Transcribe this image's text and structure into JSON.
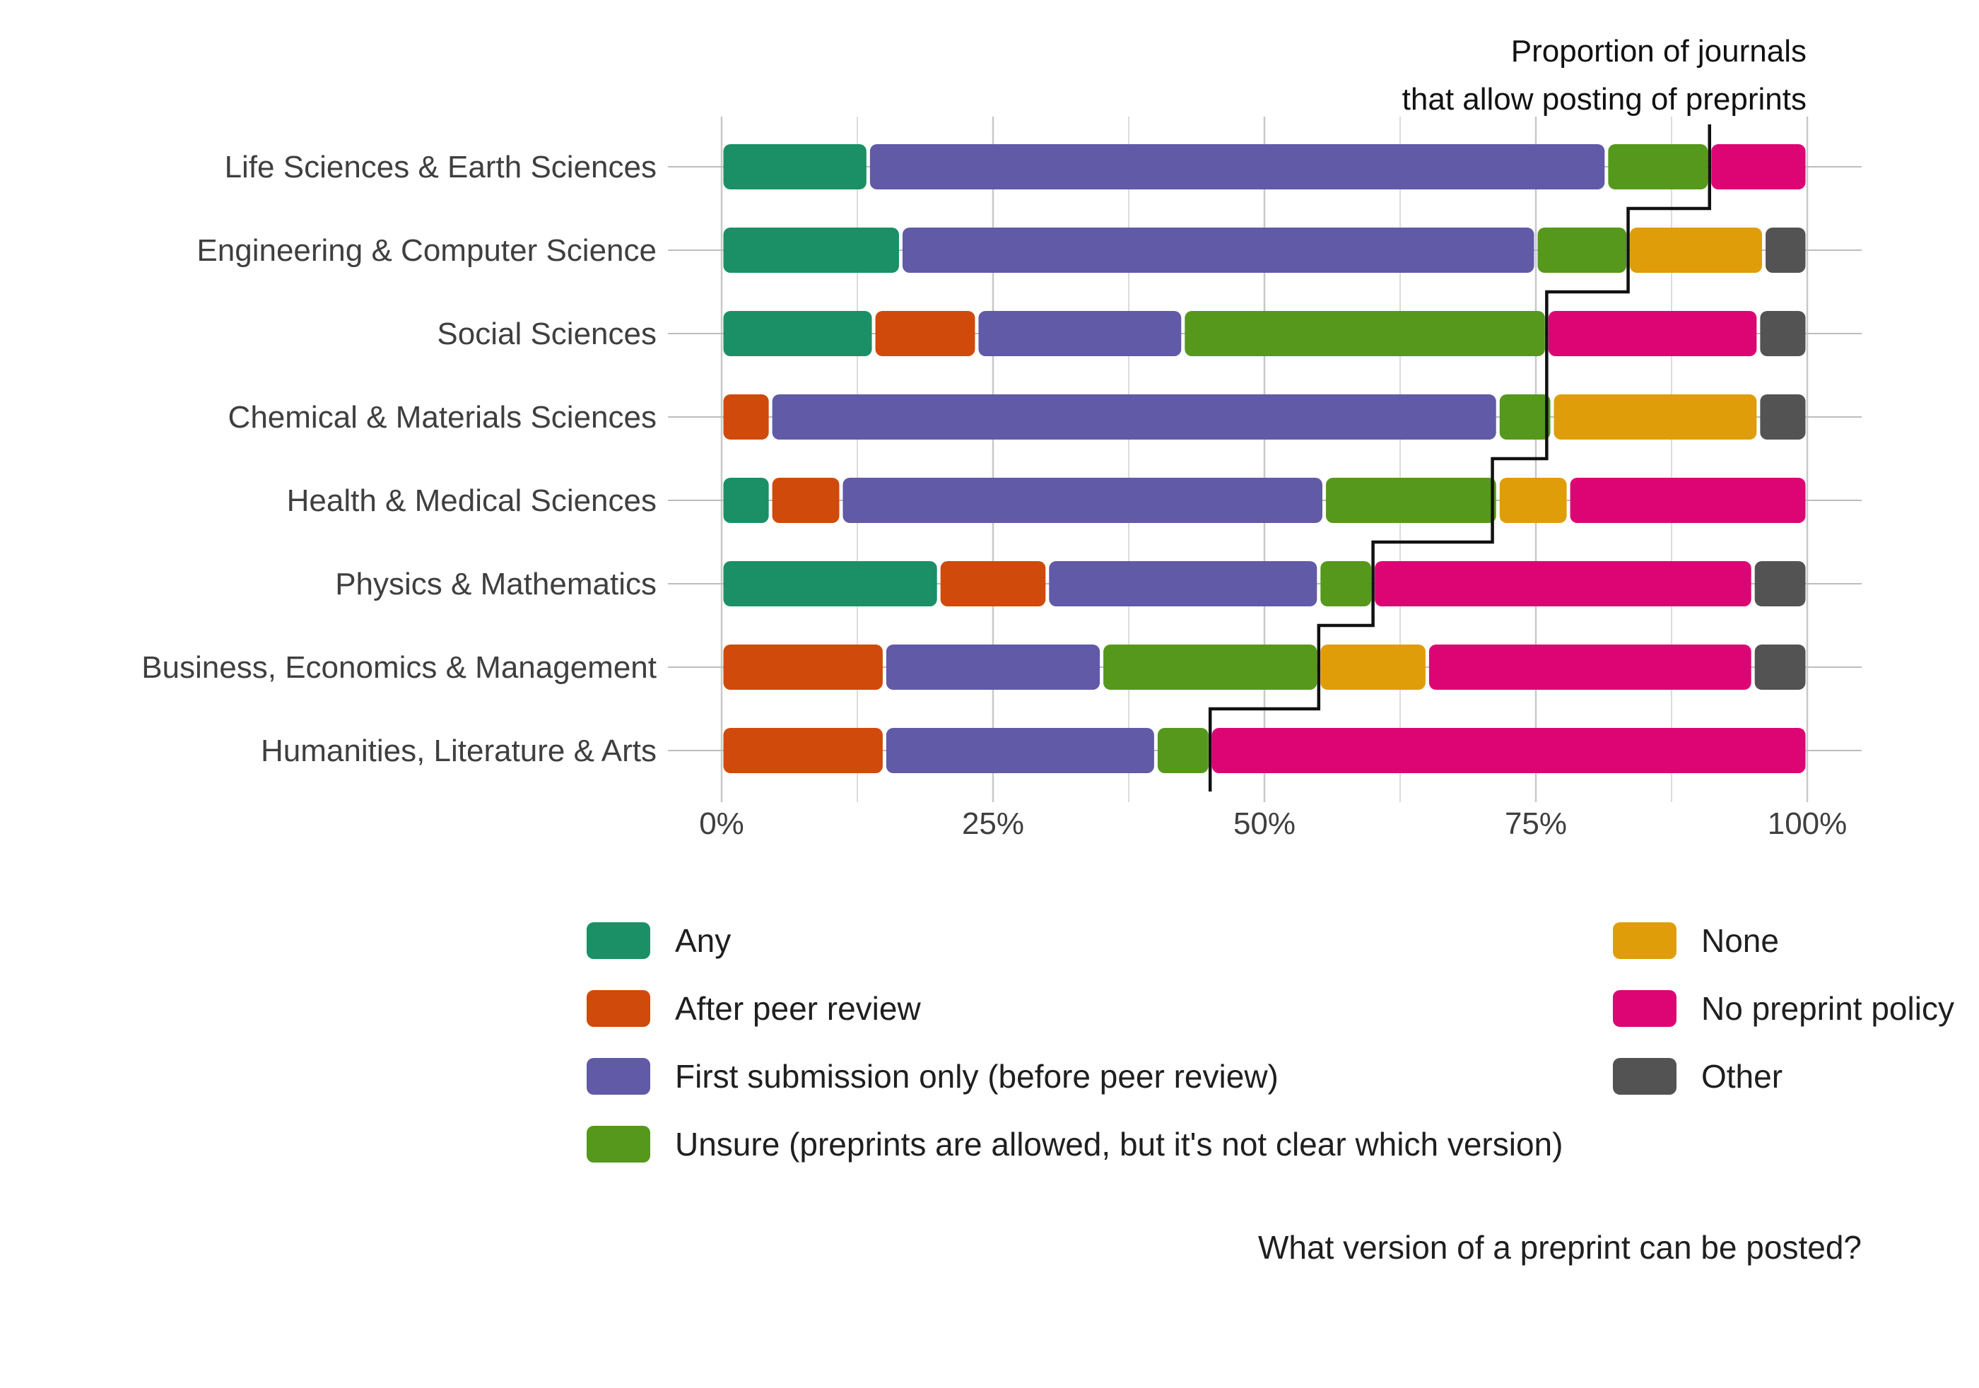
{
  "chart_data": {
    "type": "bar",
    "orientation": "horizontal",
    "stacked": true,
    "categories": [
      "Life Sciences & Earth Sciences",
      "Engineering & Computer Science",
      "Social Sciences",
      "Chemical & Materials Sciences",
      "Health & Medical Sciences",
      "Physics & Mathematics",
      "Business, Economics & Management",
      "Humanities, Literature & Arts"
    ],
    "series": [
      {
        "name": "Any",
        "color": "#1b9066",
        "values": [
          13.5,
          16.5,
          14,
          0,
          4.5,
          20,
          0,
          0
        ]
      },
      {
        "name": "After peer review",
        "color": "#cf4a0b",
        "values": [
          0,
          0,
          9.5,
          4.5,
          6.5,
          10,
          15,
          15
        ]
      },
      {
        "name": "First submission only (before peer review)",
        "color": "#605aa7",
        "values": [
          68,
          58.5,
          19,
          67,
          44.5,
          25,
          20,
          25
        ]
      },
      {
        "name": "Unsure (preprints are allowed, but it's not clear which version)",
        "color": "#56981c",
        "values": [
          9.5,
          8.5,
          33.5,
          5,
          16,
          5,
          20,
          5
        ]
      },
      {
        "name": "None",
        "color": "#e09d0a",
        "values": [
          0,
          12.5,
          0,
          19,
          6.5,
          0,
          10,
          0
        ]
      },
      {
        "name": "No preprint policy",
        "color": "#dc0573",
        "values": [
          9,
          0,
          19.5,
          0,
          22,
          35,
          30,
          55
        ]
      },
      {
        "name": "Other",
        "color": "#535353",
        "values": [
          0,
          4,
          4.5,
          4.5,
          0,
          5,
          5,
          0
        ]
      }
    ],
    "xlim": [
      0,
      100
    ],
    "xticks": [
      "0%",
      "25%",
      "50%",
      "75%",
      "100%"
    ],
    "x_minor_gridlines": [
      12.5,
      37.5,
      62.5,
      87.5
    ],
    "grid": true,
    "legend": {
      "placement": "bottom",
      "columns": 2
    },
    "step_line": {
      "label_line1": "Proportion of journals",
      "label_line2": "that allow posting of preprints",
      "values": [
        91,
        83.5,
        76,
        76,
        71,
        60,
        55,
        45
      ]
    },
    "caption": "What version of a preprint can be posted?",
    "title": "",
    "xlabel": "",
    "ylabel": ""
  }
}
